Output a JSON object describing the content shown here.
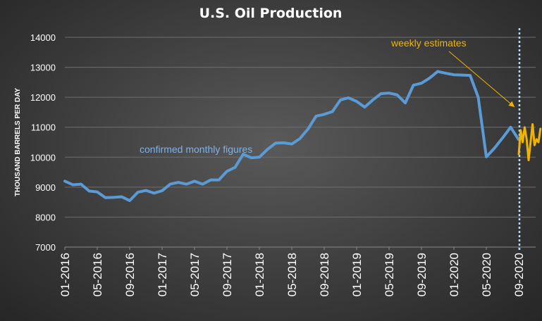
{
  "chart_data": {
    "type": "line",
    "title": "U.S. Oil Production",
    "ylabel": "THOUSAND BARRELS PER DAY",
    "xlabel": "",
    "ylim": [
      7000,
      14000
    ],
    "yticks": [
      "14000",
      "13000",
      "12000",
      "11000",
      "10000",
      "9000",
      "8000",
      "7000"
    ],
    "xticks": [
      "01-2016",
      "05-2016",
      "09-2016",
      "01-2017",
      "05-2017",
      "09-2017",
      "01-2018",
      "05-2018",
      "09-2018",
      "01-2019",
      "05-2019",
      "09-2019",
      "01-2020",
      "05-2020",
      "09-2020"
    ],
    "grid": true,
    "colors": {
      "monthly": "#5b9bd5",
      "weekly": "#f0b400",
      "divider": "#bcd6ee",
      "annotation_blue": "#7fb2e5"
    },
    "series": [
      {
        "key": "monthly",
        "x": [
          "01-2016",
          "02-2016",
          "03-2016",
          "04-2016",
          "05-2016",
          "06-2016",
          "07-2016",
          "08-2016",
          "09-2016",
          "10-2016",
          "11-2016",
          "12-2016",
          "01-2017",
          "02-2017",
          "03-2017",
          "04-2017",
          "05-2017",
          "06-2017",
          "07-2017",
          "08-2017",
          "09-2017",
          "10-2017",
          "11-2017",
          "12-2017",
          "01-2018",
          "02-2018",
          "03-2018",
          "04-2018",
          "05-2018",
          "06-2018",
          "07-2018",
          "08-2018",
          "09-2018",
          "10-2018",
          "11-2018",
          "12-2018",
          "01-2019",
          "02-2019",
          "03-2019",
          "04-2019",
          "05-2019",
          "06-2019",
          "07-2019",
          "08-2019",
          "09-2019",
          "10-2019",
          "11-2019",
          "12-2019",
          "01-2020",
          "02-2020",
          "03-2020",
          "04-2020",
          "05-2020",
          "06-2020",
          "07-2020",
          "08-2020",
          "09-2020"
        ],
        "values": [
          9200,
          9080,
          9100,
          8870,
          8840,
          8650,
          8660,
          8680,
          8550,
          8830,
          8890,
          8800,
          8880,
          9100,
          9160,
          9100,
          9200,
          9100,
          9240,
          9240,
          9530,
          9660,
          10100,
          9980,
          10000,
          10260,
          10470,
          10480,
          10440,
          10620,
          10940,
          11370,
          11430,
          11520,
          11910,
          11980,
          11860,
          11670,
          11910,
          12120,
          12140,
          12080,
          11810,
          12400,
          12470,
          12640,
          12860,
          12800,
          12750,
          12740,
          12730,
          12000,
          10010,
          10300,
          10640,
          11000,
          10580
        ]
      },
      {
        "key": "weekly",
        "x": [
          "09-2020",
          "09-2020",
          "09-2020",
          "10-2020",
          "10-2020",
          "10-2020",
          "10-2020",
          "11-2020",
          "11-2020",
          "11-2020",
          "11-2020",
          "11-2020"
        ],
        "values": [
          10100,
          10900,
          10500,
          11000,
          10600,
          9900,
          10500,
          11100,
          10400,
          10600,
          10500,
          10950
        ]
      }
    ],
    "annotations": {
      "monthly_label": "confirmed monthly figures",
      "weekly_label": "weekly estimates"
    }
  }
}
